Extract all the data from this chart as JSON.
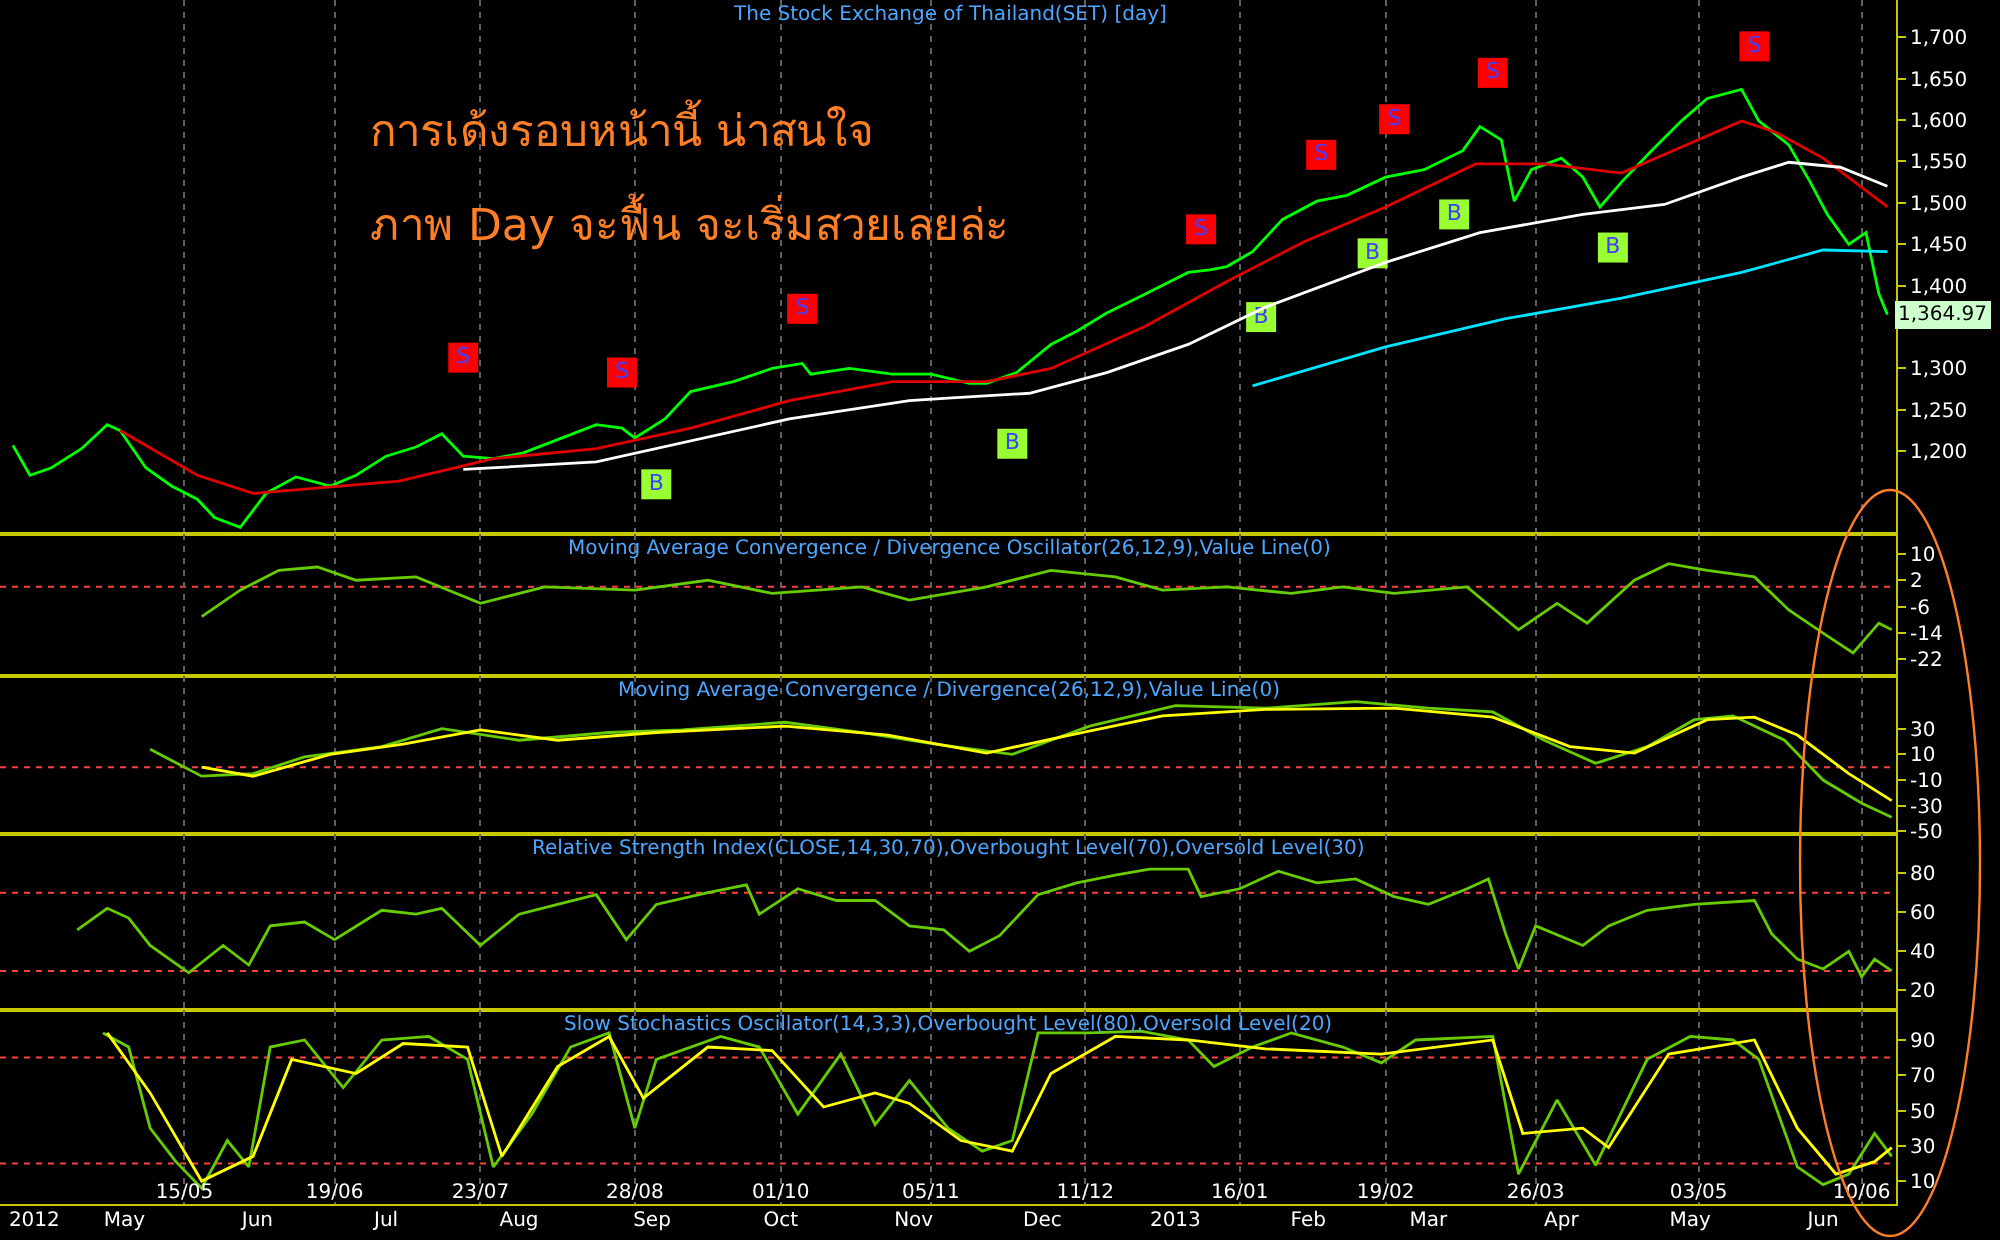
{
  "chart_data": [
    {
      "type": "line",
      "title": "The Stock Exchange of Thailand(SET) [day]",
      "annotations": [
        "การเด้งรอบหน้านี้ น่าสนใจ",
        "ภาพ Day จะฟื้น จะเริ่มสวยเลยล่ะ",
        {
          "text": "1,364.97",
          "x": "2013-06-16",
          "y": 1364.97
        }
      ],
      "xlim": [
        "2012-04-02",
        "2013-06-18"
      ],
      "ylim": [
        1100,
        1745
      ],
      "xticks": [
        {
          "value": "2012-05-15",
          "label": null
        },
        {
          "value": "2012-06-19",
          "label": null
        },
        {
          "value": "2012-07-23",
          "label": null
        },
        {
          "value": "2012-08-28",
          "label": null
        },
        {
          "value": "2012-10-01",
          "label": null
        },
        {
          "value": "2012-11-05",
          "label": null
        },
        {
          "value": "2012-12-11",
          "label": null
        },
        {
          "value": "2013-01-16",
          "label": null
        },
        {
          "value": "2013-02-19",
          "label": null
        },
        {
          "value": "2013-03-26",
          "label": null
        },
        {
          "value": "2013-05-03",
          "label": null
        },
        {
          "value": "2013-06-10",
          "label": null
        }
      ],
      "yticks": [
        {
          "value": 1200,
          "label": "1,200"
        },
        {
          "value": 1250,
          "label": "1,250"
        },
        {
          "value": 1300,
          "label": "1,300"
        },
        {
          "value": 1400,
          "label": "1,400"
        },
        {
          "value": 1450,
          "label": "1,450"
        },
        {
          "value": 1500,
          "label": "1,500"
        },
        {
          "value": 1550,
          "label": "1,550"
        },
        {
          "value": 1600,
          "label": "1,600"
        },
        {
          "value": 1650,
          "label": "1,650"
        },
        {
          "value": 1700,
          "label": "1,700"
        }
      ],
      "tick_labels": "y",
      "grid": "x",
      "series": [
        {
          "color": "#00ff00",
          "x": [
            "2012-04-05",
            "2012-04-09",
            "2012-04-14",
            "2012-04-21",
            "2012-04-27",
            "2012-04-30",
            "2012-05-06",
            "2012-05-12",
            "2012-05-18",
            "2012-05-22",
            "2012-05-28",
            "2012-06-03",
            "2012-06-10",
            "2012-06-18",
            "2012-06-24",
            "2012-07-01",
            "2012-07-08",
            "2012-07-14",
            "2012-07-19",
            "2012-07-26",
            "2012-08-02",
            "2012-08-10",
            "2012-08-19",
            "2012-08-25",
            "2012-08-28",
            "2012-09-04",
            "2012-09-10",
            "2012-09-20",
            "2012-09-29",
            "2012-10-06",
            "2012-10-08",
            "2012-10-17",
            "2012-10-27",
            "2012-11-05",
            "2012-11-14",
            "2012-11-18",
            "2012-11-25",
            "2012-12-03",
            "2012-12-09",
            "2012-12-16",
            "2012-12-25",
            "2013-01-04",
            "2013-01-09",
            "2013-01-13",
            "2013-01-19",
            "2013-01-26",
            "2013-02-03",
            "2013-02-10",
            "2013-02-19",
            "2013-02-28",
            "2013-03-09",
            "2013-03-13",
            "2013-03-18",
            "2013-03-21",
            "2013-03-25",
            "2013-04-01",
            "2013-04-06",
            "2013-04-10",
            "2013-04-15",
            "2013-04-22",
            "2013-04-29",
            "2013-05-05",
            "2013-05-13",
            "2013-05-17",
            "2013-05-24",
            "2013-05-29",
            "2013-06-02",
            "2013-06-07",
            "2013-06-11",
            "2013-06-14",
            "2013-06-16"
          ],
          "values": [
            1207,
            1171,
            1180,
            1203,
            1232,
            1225,
            1180,
            1158,
            1142,
            1120,
            1108,
            1149,
            1169,
            1158,
            1171,
            1194,
            1205,
            1221,
            1194,
            1191,
            1198,
            1214,
            1232,
            1228,
            1216,
            1239,
            1272,
            1284,
            1300,
            1306,
            1293,
            1300,
            1293,
            1293,
            1282,
            1282,
            1295,
            1329,
            1345,
            1367,
            1390,
            1416,
            1419,
            1423,
            1441,
            1480,
            1502,
            1509,
            1531,
            1540,
            1563,
            1592,
            1576,
            1502,
            1540,
            1554,
            1531,
            1495,
            1525,
            1563,
            1599,
            1626,
            1637,
            1599,
            1570,
            1525,
            1486,
            1450,
            1464,
            1390,
            1364.97
          ]
        },
        {
          "color": "#e00000",
          "x": [
            "2012-04-30",
            "2012-05-18",
            "2012-05-31",
            "2012-07-04",
            "2012-07-26",
            "2012-08-19",
            "2012-09-10",
            "2012-10-03",
            "2012-10-27",
            "2012-11-18",
            "2012-12-03",
            "2012-12-25",
            "2013-01-13",
            "2013-01-31",
            "2013-02-19",
            "2013-03-12",
            "2013-03-28",
            "2013-04-15",
            "2013-05-13",
            "2013-05-21",
            "2013-06-01",
            "2013-06-16"
          ],
          "values": [
            1225,
            1171,
            1149,
            1164,
            1191,
            1203,
            1228,
            1261,
            1284,
            1284,
            1300,
            1351,
            1405,
            1453,
            1495,
            1547,
            1547,
            1536,
            1599,
            1585,
            1554,
            1495
          ]
        },
        {
          "color": "#ffffff",
          "x": [
            "2012-07-19",
            "2012-08-19",
            "2012-10-03",
            "2012-10-31",
            "2012-11-09",
            "2012-11-28",
            "2012-12-16",
            "2013-01-04",
            "2013-01-22",
            "2013-02-19",
            "2013-03-13",
            "2013-04-06",
            "2013-04-25",
            "2013-05-13",
            "2013-05-24",
            "2013-06-05",
            "2013-06-16"
          ],
          "values": [
            1178,
            1187,
            1239,
            1261,
            1264,
            1270,
            1295,
            1329,
            1374,
            1428,
            1464,
            1486,
            1498,
            1531,
            1549,
            1543,
            1520
          ]
        },
        {
          "color": "#00e5ff",
          "x": [
            "2013-01-19",
            "2013-02-19",
            "2013-03-19",
            "2013-04-15",
            "2013-05-13",
            "2013-06-01",
            "2013-06-16"
          ],
          "values": [
            1279,
            1326,
            1360,
            1385,
            1416,
            1443,
            1441
          ]
        },
        {
          "type": "scatter",
          "marker": "square",
          "color": "#ff0000",
          "x": [
            "2012-07-19",
            "2012-08-25",
            "2012-10-06",
            "2013-01-07",
            "2013-02-04",
            "2013-02-21",
            "2013-03-16",
            "2013-05-16"
          ],
          "values": [
            1313,
            1295,
            1372,
            1468,
            1558,
            1601,
            1657,
            1689
          ],
          "value_labels": [
            "S",
            "S",
            "S",
            "S",
            "S",
            "S",
            "S",
            "S"
          ]
        },
        {
          "type": "scatter",
          "marker": "square",
          "color": "#99ff33",
          "x": [
            "2012-09-02",
            "2012-11-24",
            "2013-01-21",
            "2013-02-16",
            "2013-03-07",
            "2013-04-13"
          ],
          "values": [
            1160,
            1209,
            1362,
            1439,
            1486,
            1446
          ],
          "value_labels": [
            "B",
            "B",
            "B",
            "B",
            "B",
            "B"
          ]
        }
      ]
    },
    {
      "type": "line",
      "title": "Moving Average Convergence / Divergence Oscillator(26,12,9),Value Line(0)",
      "xlim": [
        "2012-04-02",
        "2013-06-18"
      ],
      "ylim": [
        -27,
        16
      ],
      "xticks": [
        {
          "value": "2012-05-15",
          "label": null
        },
        {
          "value": "2012-06-19",
          "label": null
        },
        {
          "value": "2012-07-23",
          "label": null
        },
        {
          "value": "2012-08-28",
          "label": null
        },
        {
          "value": "2012-10-01",
          "label": null
        },
        {
          "value": "2012-11-05",
          "label": null
        },
        {
          "value": "2012-12-11",
          "label": null
        },
        {
          "value": "2013-01-16",
          "label": null
        },
        {
          "value": "2013-02-19",
          "label": null
        },
        {
          "value": "2013-03-26",
          "label": null
        },
        {
          "value": "2013-05-03",
          "label": null
        },
        {
          "value": "2013-06-10",
          "label": null
        }
      ],
      "yticks": [
        10,
        2,
        -6,
        -14,
        -22
      ],
      "tick_labels": "y",
      "grid": "x",
      "ref_lines": [
        {
          "axis": "y",
          "value": 0,
          "color": "#ff4040",
          "line_style": "dotted"
        }
      ],
      "series": [
        {
          "color": "#66cc00",
          "x": [
            "2012-05-19",
            "2012-05-28",
            "2012-06-06",
            "2012-06-15",
            "2012-06-24",
            "2012-07-08",
            "2012-07-23",
            "2012-08-07",
            "2012-08-28",
            "2012-09-14",
            "2012-09-29",
            "2012-10-20",
            "2012-10-31",
            "2012-11-18",
            "2012-12-03",
            "2012-12-18",
            "2012-12-29",
            "2013-01-13",
            "2013-01-28",
            "2013-02-09",
            "2013-02-21",
            "2013-03-10",
            "2013-03-22",
            "2013-03-31",
            "2013-04-07",
            "2013-04-18",
            "2013-04-26",
            "2013-05-05",
            "2013-05-16",
            "2013-05-24",
            "2013-06-01",
            "2013-06-08",
            "2013-06-14",
            "2013-06-17"
          ],
          "values": [
            -9,
            -1,
            5,
            6,
            2,
            3,
            -5,
            0,
            -1,
            2,
            -2,
            0,
            -4,
            0,
            5,
            3,
            -1,
            0,
            -2,
            0,
            -2,
            0,
            -13,
            -5,
            -11,
            2,
            7,
            5,
            3,
            -7,
            -14,
            -20,
            -11,
            -13
          ]
        }
      ]
    },
    {
      "type": "line",
      "title": "Moving Average Convergence / Divergence(26,12,9),Value Line(0)",
      "xlim": [
        "2012-04-02",
        "2013-06-18"
      ],
      "ylim": [
        -52,
        71
      ],
      "xticks": [
        {
          "value": "2012-05-15",
          "label": null
        },
        {
          "value": "2012-06-19",
          "label": null
        },
        {
          "value": "2012-07-23",
          "label": null
        },
        {
          "value": "2012-08-28",
          "label": null
        },
        {
          "value": "2012-10-01",
          "label": null
        },
        {
          "value": "2012-11-05",
          "label": null
        },
        {
          "value": "2012-12-11",
          "label": null
        },
        {
          "value": "2013-01-16",
          "label": null
        },
        {
          "value": "2013-02-19",
          "label": null
        },
        {
          "value": "2013-03-26",
          "label": null
        },
        {
          "value": "2013-05-03",
          "label": null
        },
        {
          "value": "2013-06-10",
          "label": null
        }
      ],
      "yticks": [
        30,
        10,
        -10,
        -30,
        -50
      ],
      "tick_labels": "y",
      "grid": "x",
      "ref_lines": [
        {
          "axis": "y",
          "value": 0,
          "color": "#ff4040",
          "line_style": "dotted"
        }
      ],
      "series": [
        {
          "color": "#66cc00",
          "x": [
            "2012-05-07",
            "2012-05-19",
            "2012-05-31",
            "2012-06-12",
            "2012-06-30",
            "2012-07-14",
            "2012-08-01",
            "2012-08-22",
            "2012-09-08",
            "2012-10-02",
            "2012-10-20",
            "2012-11-06",
            "2012-11-24",
            "2012-12-12",
            "2013-01-01",
            "2013-01-22",
            "2013-02-12",
            "2013-03-01",
            "2013-03-16",
            "2013-03-28",
            "2013-04-09",
            "2013-04-21",
            "2013-05-02",
            "2013-05-11",
            "2013-05-23",
            "2013-06-01",
            "2013-06-10",
            "2013-06-17"
          ],
          "values": [
            14,
            -7,
            -5,
            8,
            16,
            30,
            21,
            27,
            29,
            35,
            27,
            18,
            10,
            32,
            48,
            46,
            51,
            46,
            43,
            21,
            3,
            16,
            37,
            40,
            21,
            -10,
            -28,
            -39
          ]
        },
        {
          "color": "#ffff00",
          "x": [
            "2012-05-19",
            "2012-05-31",
            "2012-06-18",
            "2012-07-05",
            "2012-07-23",
            "2012-08-10",
            "2012-09-02",
            "2012-10-02",
            "2012-10-26",
            "2012-11-18",
            "2012-12-06",
            "2012-12-29",
            "2013-01-22",
            "2013-02-21",
            "2013-03-16",
            "2013-04-03",
            "2013-04-18",
            "2013-05-05",
            "2013-05-16",
            "2013-05-26",
            "2013-06-07",
            "2013-06-17"
          ],
          "values": [
            0,
            -7,
            10,
            18,
            29,
            21,
            27,
            32,
            25,
            11,
            24,
            40,
            45,
            46,
            39,
            16,
            11,
            37,
            39,
            25,
            -5,
            -26
          ]
        }
      ]
    },
    {
      "type": "line",
      "title": "Relative Strength Index(CLOSE,14,30,70),Overbought Level(70),Oversold Level(30)",
      "xlim": [
        "2012-04-02",
        "2013-06-18"
      ],
      "ylim": [
        10,
        100
      ],
      "xticks": [
        {
          "value": "2012-05-15",
          "label": null
        },
        {
          "value": "2012-06-19",
          "label": null
        },
        {
          "value": "2012-07-23",
          "label": null
        },
        {
          "value": "2012-08-28",
          "label": null
        },
        {
          "value": "2012-10-01",
          "label": null
        },
        {
          "value": "2012-11-05",
          "label": null
        },
        {
          "value": "2012-12-11",
          "label": null
        },
        {
          "value": "2013-01-16",
          "label": null
        },
        {
          "value": "2013-02-19",
          "label": null
        },
        {
          "value": "2013-03-26",
          "label": null
        },
        {
          "value": "2013-05-03",
          "label": null
        },
        {
          "value": "2013-06-10",
          "label": null
        }
      ],
      "yticks": [
        80,
        60,
        40,
        20
      ],
      "tick_labels": "y",
      "grid": "x",
      "ref_lines": [
        {
          "axis": "y",
          "value": 70,
          "color": "#ff4040",
          "line_style": "dotted"
        },
        {
          "axis": "y",
          "value": 30,
          "color": "#ff4040",
          "line_style": "dotted"
        }
      ],
      "series": [
        {
          "color": "#66cc00",
          "x": [
            "2012-04-20",
            "2012-04-27",
            "2012-05-02",
            "2012-05-07",
            "2012-05-16",
            "2012-05-24",
            "2012-05-30",
            "2012-06-04",
            "2012-06-12",
            "2012-06-19",
            "2012-06-30",
            "2012-07-08",
            "2012-07-14",
            "2012-07-23",
            "2012-08-01",
            "2012-08-10",
            "2012-08-19",
            "2012-08-26",
            "2012-09-02",
            "2012-09-14",
            "2012-09-23",
            "2012-09-26",
            "2012-10-05",
            "2012-10-14",
            "2012-10-23",
            "2012-10-31",
            "2012-11-08",
            "2012-11-14",
            "2012-11-21",
            "2012-11-30",
            "2012-12-09",
            "2012-12-18",
            "2012-12-26",
            "2013-01-04",
            "2013-01-07",
            "2013-01-16",
            "2013-01-25",
            "2013-02-03",
            "2013-02-12",
            "2013-02-21",
            "2013-03-01",
            "2013-03-10",
            "2013-03-15",
            "2013-03-19",
            "2013-03-22",
            "2013-03-26",
            "2013-04-06",
            "2013-04-12",
            "2013-04-21",
            "2013-05-02",
            "2013-05-16",
            "2013-05-20",
            "2013-05-26",
            "2013-06-01",
            "2013-06-07",
            "2013-06-10",
            "2013-06-13",
            "2013-06-17"
          ],
          "values": [
            51,
            62,
            57,
            43,
            29,
            43,
            33,
            53,
            55,
            46,
            61,
            59,
            62,
            43,
            59,
            64,
            69,
            46,
            64,
            70,
            74,
            59,
            72,
            66,
            66,
            53,
            51,
            40,
            48,
            69,
            75,
            79,
            82,
            82,
            68,
            72,
            81,
            75,
            77,
            68,
            64,
            72,
            77,
            49,
            31,
            53,
            43,
            53,
            61,
            64,
            66,
            49,
            36,
            31,
            40,
            27,
            36,
            30
          ]
        }
      ]
    },
    {
      "type": "line",
      "title": "Slow Stochastics Oscillator(14,3,3),Overbought Level(80),Oversold Level(20)",
      "xlim": [
        "2012-04-02",
        "2013-06-18"
      ],
      "ylim": [
        -3,
        107
      ],
      "xticks": [
        {
          "value": "2012-05-15",
          "label": "15/05"
        },
        {
          "value": "2012-06-19",
          "label": "19/06"
        },
        {
          "value": "2012-07-23",
          "label": "23/07"
        },
        {
          "value": "2012-08-28",
          "label": "28/08"
        },
        {
          "value": "2012-10-01",
          "label": "01/10"
        },
        {
          "value": "2012-11-05",
          "label": "05/11"
        },
        {
          "value": "2012-12-11",
          "label": "11/12"
        },
        {
          "value": "2013-01-16",
          "label": "16/01"
        },
        {
          "value": "2013-02-19",
          "label": "19/02"
        },
        {
          "value": "2013-03-26",
          "label": "26/03"
        },
        {
          "value": "2013-05-03",
          "label": "03/05"
        },
        {
          "value": "2013-06-10",
          "label": "10/06"
        }
      ],
      "x2lim": [
        "2012-04-02",
        "2013-06-18"
      ],
      "x2ticks": [
        {
          "value": "2012-04-10",
          "label": "2012"
        },
        {
          "value": "2012-05-01",
          "label": "May"
        },
        {
          "value": "2012-06-01",
          "label": "Jun"
        },
        {
          "value": "2012-07-01",
          "label": "Jul"
        },
        {
          "value": "2012-08-01",
          "label": "Aug"
        },
        {
          "value": "2012-09-01",
          "label": "Sep"
        },
        {
          "value": "2012-10-01",
          "label": "Oct"
        },
        {
          "value": "2012-11-01",
          "label": "Nov"
        },
        {
          "value": "2012-12-01",
          "label": "Dec"
        },
        {
          "value": "2013-01-01",
          "label": "2013"
        },
        {
          "value": "2013-02-01",
          "label": "Feb"
        },
        {
          "value": "2013-03-01",
          "label": "Mar"
        },
        {
          "value": "2013-04-01",
          "label": "Apr"
        },
        {
          "value": "2013-05-01",
          "label": "May"
        },
        {
          "value": "2013-06-01",
          "label": "Jun"
        }
      ],
      "yticks": [
        90,
        70,
        50,
        30,
        10
      ],
      "grid": "x",
      "ref_lines": [
        {
          "axis": "y",
          "value": 80,
          "color": "#ff4040",
          "line_style": "dotted"
        },
        {
          "axis": "y",
          "value": 20,
          "color": "#ff4040",
          "line_style": "dotted"
        }
      ],
      "series": [
        {
          "color": "#66cc00",
          "x": [
            "2012-04-26",
            "2012-05-02",
            "2012-05-07",
            "2012-05-13",
            "2012-05-19",
            "2012-05-25",
            "2012-05-30",
            "2012-06-04",
            "2012-06-12",
            "2012-06-21",
            "2012-06-30",
            "2012-07-11",
            "2012-07-20",
            "2012-07-26",
            "2012-08-04",
            "2012-08-13",
            "2012-08-22",
            "2012-08-28",
            "2012-09-02",
            "2012-09-17",
            "2012-09-26",
            "2012-10-05",
            "2012-10-15",
            "2012-10-23",
            "2012-10-31",
            "2012-11-09",
            "2012-11-17",
            "2012-11-24",
            "2012-11-30",
            "2012-12-12",
            "2012-12-24",
            "2013-01-04",
            "2013-01-10",
            "2013-01-19",
            "2013-01-28",
            "2013-02-09",
            "2013-02-18",
            "2013-02-26",
            "2013-03-16",
            "2013-03-22",
            "2013-03-31",
            "2013-04-09",
            "2013-04-21",
            "2013-05-01",
            "2013-05-11",
            "2013-05-17",
            "2013-05-26",
            "2013-06-01",
            "2013-06-07",
            "2013-06-13",
            "2013-06-17"
          ],
          "values": [
            94,
            86,
            40,
            21,
            6,
            33,
            18,
            86,
            90,
            63,
            90,
            92,
            79,
            18,
            48,
            86,
            94,
            40,
            79,
            92,
            86,
            48,
            82,
            42,
            67,
            40,
            27,
            33,
            94,
            94,
            95,
            90,
            75,
            86,
            94,
            86,
            77,
            90,
            92,
            14,
            56,
            19,
            79,
            92,
            90,
            79,
            18,
            8,
            14,
            37,
            24
          ]
        },
        {
          "color": "#ffff00",
          "x": [
            "2012-04-27",
            "2012-05-07",
            "2012-05-19",
            "2012-05-31",
            "2012-06-09",
            "2012-06-24",
            "2012-07-05",
            "2012-07-20",
            "2012-07-28",
            "2012-08-10",
            "2012-08-22",
            "2012-08-30",
            "2012-09-14",
            "2012-09-29",
            "2012-10-11",
            "2012-10-23",
            "2012-10-31",
            "2012-11-12",
            "2012-11-24",
            "2012-12-03",
            "2012-12-18",
            "2013-01-04",
            "2013-01-22",
            "2013-02-18",
            "2013-03-16",
            "2013-03-23",
            "2013-04-06",
            "2013-04-12",
            "2013-04-26",
            "2013-05-16",
            "2013-05-26",
            "2013-06-04",
            "2013-06-13",
            "2013-06-17"
          ],
          "values": [
            94,
            60,
            10,
            24,
            79,
            71,
            88,
            86,
            24,
            75,
            92,
            57,
            86,
            84,
            52,
            60,
            54,
            33,
            27,
            71,
            92,
            90,
            85,
            82,
            90,
            37,
            40,
            29,
            82,
            90,
            40,
            14,
            21,
            29
          ]
        }
      ]
    }
  ]
}
